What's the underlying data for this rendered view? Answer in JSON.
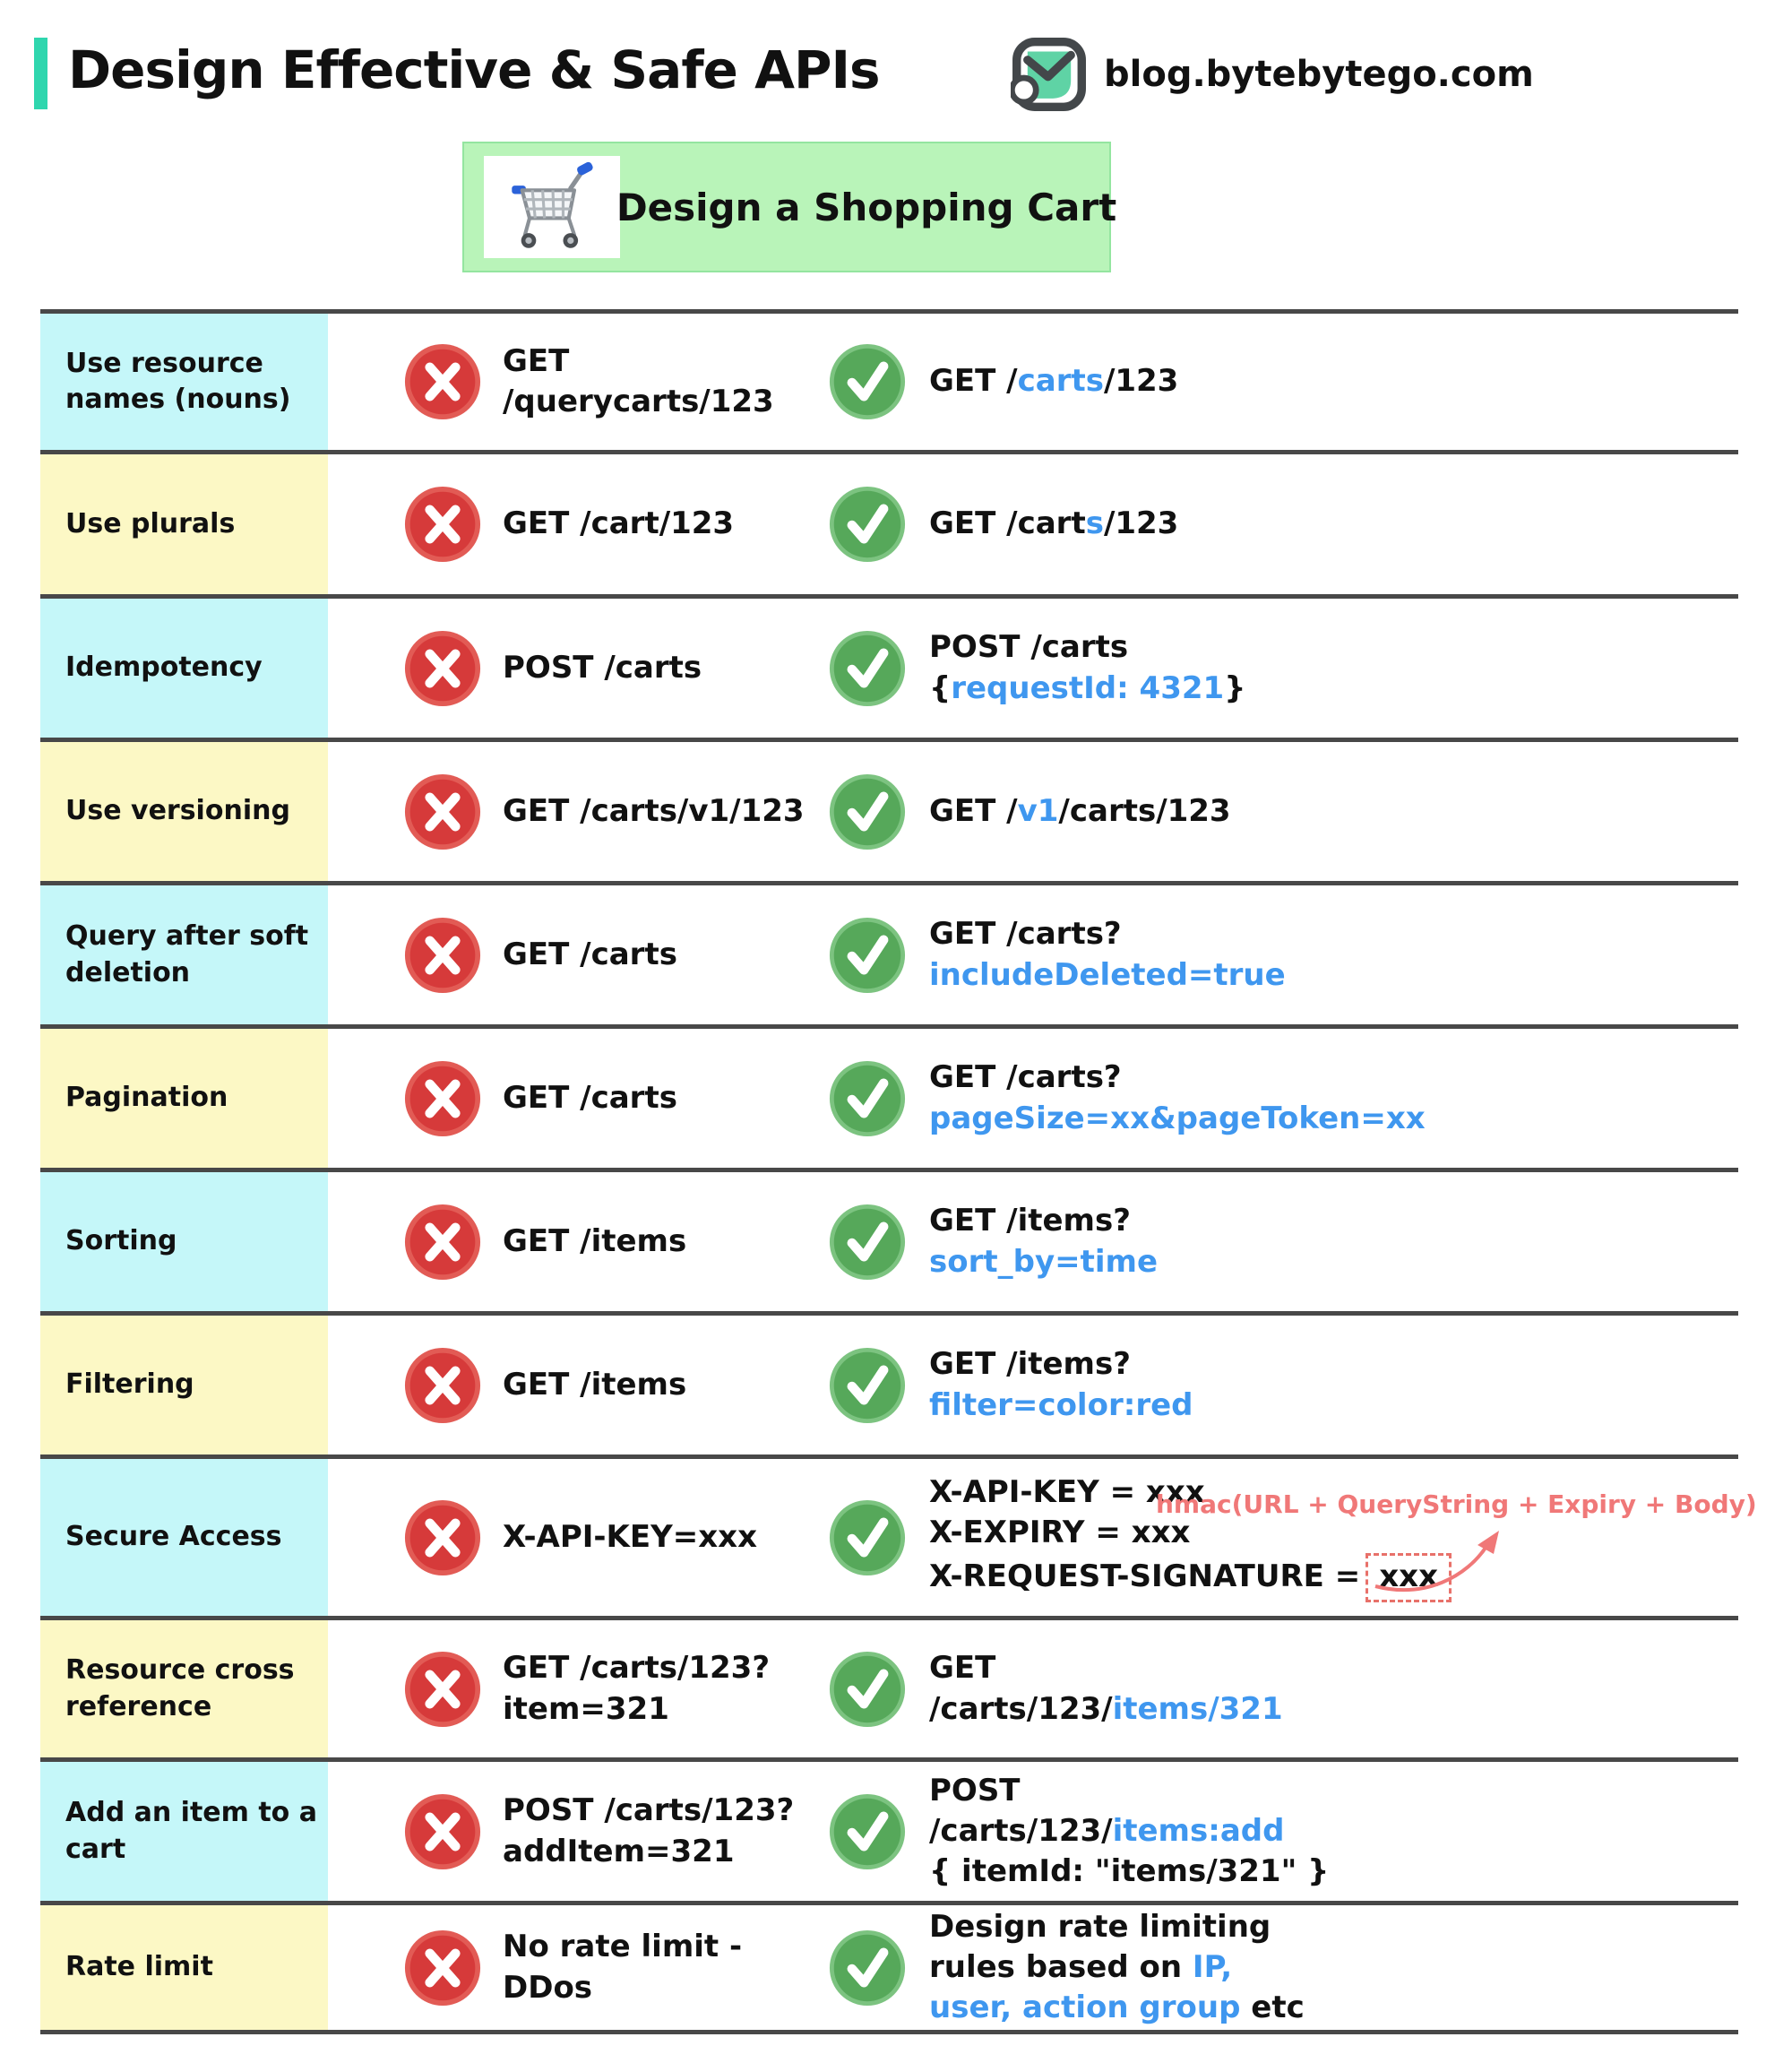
{
  "header": {
    "title": "Design Effective & Safe APIs",
    "site": "blog.bytebytego.com"
  },
  "banner": {
    "title": "Design a Shopping Cart",
    "icon": "shopping-cart-icon"
  },
  "colors": {
    "accent": "#2fd6ae",
    "banner_bg": "#b9f4b9",
    "cyan_label": "#c5f7f9",
    "yellow_label": "#fcf8c5",
    "blue_text": "#3f97ef",
    "bad_red": "#d63a3a",
    "bad_red_ring": "#e25b55",
    "good_green": "#56a85a",
    "good_green_ring": "#7cc380",
    "annotation_red": "#f07878",
    "divider": "#484848"
  },
  "icons": {
    "bad": "cross-icon",
    "good": "check-icon"
  },
  "table": {
    "rows": [
      {
        "label": "Use resource names (nouns)",
        "tint": "cyan",
        "bad_lines": [
          [
            {
              "t": "GET /querycarts/123"
            }
          ]
        ],
        "good_lines": [
          [
            {
              "t": "GET /"
            },
            {
              "t": "carts",
              "c": "blue"
            },
            {
              "t": "/123"
            }
          ]
        ]
      },
      {
        "label": "Use plurals",
        "tint": "yellow",
        "bad_lines": [
          [
            {
              "t": "GET /cart/123"
            }
          ]
        ],
        "good_lines": [
          [
            {
              "t": "GET /cart"
            },
            {
              "t": "s",
              "c": "blue"
            },
            {
              "t": "/123"
            }
          ]
        ]
      },
      {
        "label": "Idempotency",
        "tint": "cyan",
        "bad_lines": [
          [
            {
              "t": "POST /carts"
            }
          ]
        ],
        "good_lines": [
          [
            {
              "t": "POST /carts"
            }
          ],
          [
            {
              "t": "{"
            },
            {
              "t": "requestId: 4321",
              "c": "blue"
            },
            {
              "t": "}"
            }
          ]
        ]
      },
      {
        "label": "Use versioning",
        "tint": "yellow",
        "bad_lines": [
          [
            {
              "t": "GET /carts/v1/123"
            }
          ]
        ],
        "good_lines": [
          [
            {
              "t": "GET /"
            },
            {
              "t": "v1",
              "c": "blue"
            },
            {
              "t": "/carts/123"
            }
          ]
        ]
      },
      {
        "label": "Query after soft deletion",
        "tint": "cyan",
        "bad_lines": [
          [
            {
              "t": "GET /carts"
            }
          ]
        ],
        "good_lines": [
          [
            {
              "t": "GET /carts?"
            }
          ],
          [
            {
              "t": "includeDeleted=true",
              "c": "blue"
            }
          ]
        ]
      },
      {
        "label": "Pagination",
        "tint": "yellow",
        "bad_lines": [
          [
            {
              "t": "GET /carts"
            }
          ]
        ],
        "good_lines": [
          [
            {
              "t": "GET /carts?"
            }
          ],
          [
            {
              "t": "pageSize=xx&pageToken=xx",
              "c": "blue"
            }
          ]
        ]
      },
      {
        "label": "Sorting",
        "tint": "cyan",
        "bad_lines": [
          [
            {
              "t": "GET /items"
            }
          ]
        ],
        "good_lines": [
          [
            {
              "t": "GET /items?"
            }
          ],
          [
            {
              "t": "sort_by=time",
              "c": "blue"
            }
          ]
        ]
      },
      {
        "label": "Filtering",
        "tint": "yellow",
        "bad_lines": [
          [
            {
              "t": "GET /items"
            }
          ]
        ],
        "good_lines": [
          [
            {
              "t": "GET /items?"
            }
          ],
          [
            {
              "t": "filter=color:red",
              "c": "blue"
            }
          ]
        ]
      },
      {
        "label": "Secure Access",
        "tint": "cyan",
        "bad_lines": [
          [
            {
              "t": "X-API-KEY=xxx"
            }
          ]
        ],
        "good_lines": [
          [
            {
              "t": "X-API-KEY = xxx"
            }
          ],
          [
            {
              "t": "X-EXPIRY = xxx"
            }
          ],
          [
            {
              "t": "X-REQUEST-SIGNATURE ="
            },
            {
              "t": "xxx",
              "box": true
            }
          ]
        ],
        "annotation": "hmac(URL + QueryString + Expiry + Body)"
      },
      {
        "label": "Resource cross reference",
        "tint": "yellow",
        "bad_lines": [
          [
            {
              "t": "GET /carts/123?"
            }
          ],
          [
            {
              "t": "item=321"
            }
          ]
        ],
        "good_lines": [
          [
            {
              "t": "GET"
            }
          ],
          [
            {
              "t": "/carts/123/"
            },
            {
              "t": "items/321",
              "c": "blue"
            }
          ]
        ]
      },
      {
        "label": "Add an item to a cart",
        "tint": "cyan",
        "bad_lines": [
          [
            {
              "t": "POST /carts/123?"
            }
          ],
          [
            {
              "t": "addItem=321"
            }
          ]
        ],
        "good_lines": [
          [
            {
              "t": "POST"
            }
          ],
          [
            {
              "t": "/carts/123/"
            },
            {
              "t": "items:add",
              "c": "blue"
            }
          ],
          [
            {
              "t": "{ itemId: \"items/321\" }"
            }
          ]
        ]
      },
      {
        "label": "Rate limit",
        "tint": "yellow",
        "bad_lines": [
          [
            {
              "t": "No rate limit -"
            },
            {
              "t": "DDos"
            }
          ]
        ],
        "good_lines": [
          [
            {
              "t": "Design rate limiting"
            }
          ],
          [
            {
              "t": "rules based on "
            },
            {
              "t": "IP,",
              "c": "blue"
            }
          ],
          [
            {
              "t": "user, action group",
              "c": "blue"
            },
            {
              "t": " etc"
            }
          ]
        ]
      }
    ]
  }
}
